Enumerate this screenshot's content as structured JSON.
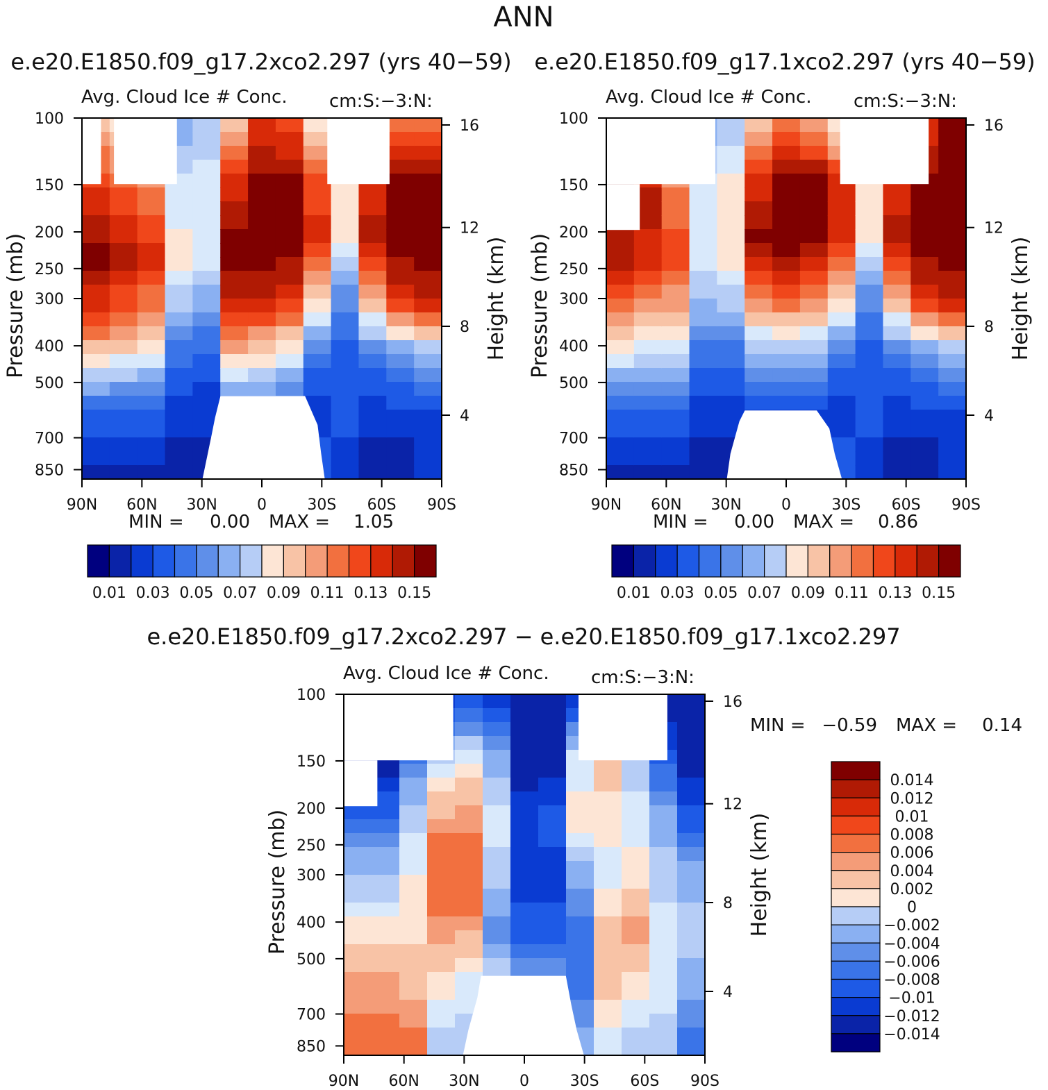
{
  "chart_data": {
    "title": "ANN",
    "panels": [
      {
        "type": "heatmap",
        "header": "e.e20.E1850.f09_g17.2xco2.297 (yrs 40−59)",
        "left_label": "Avg. Cloud Ice # Conc.",
        "right_label": "cm:S:−3:N:",
        "ylabel": "Pressure (mb)",
        "ylabel_right": "Height (km)",
        "x_ticks": [
          "90N",
          "60N",
          "30N",
          "0",
          "30S",
          "60S",
          "90S"
        ],
        "y_ticks": [
          "100",
          "150",
          "200",
          "250",
          "300",
          "400",
          "500",
          "700",
          "850"
        ],
        "y_right_ticks": [
          "16",
          "12",
          "8",
          "4"
        ],
        "min_label": "MIN =",
        "min_value": "0.00",
        "max_label": "MAX =",
        "max_value": "1.05",
        "colorbar_ticks": [
          "0.01",
          "0.03",
          "0.05",
          "0.07",
          "0.09",
          "0.11",
          "0.13",
          "0.15"
        ],
        "profiles": [
          [
            10,
            14,
            16,
            12,
            4,
            1
          ],
          [
            9,
            13,
            15,
            11,
            4,
            1
          ],
          [
            8,
            12,
            14,
            10,
            4,
            1
          ],
          [
            6,
            8,
            9,
            5,
            2,
            1
          ],
          [
            7,
            8,
            8,
            4,
            2,
            1
          ],
          [
            10,
            14,
            16,
            15,
            10,
            3,
            1
          ],
          [
            14,
            16,
            16,
            15,
            9,
            3,
            1
          ],
          [
            13,
            16,
            16,
            14,
            8,
            3,
            1
          ],
          [
            9,
            13,
            14,
            10,
            4,
            2,
            3
          ],
          [
            6,
            9,
            9,
            5,
            3,
            3,
            2
          ],
          [
            9,
            14,
            15,
            11,
            4,
            2,
            1
          ],
          [
            12,
            16,
            16,
            14,
            5,
            2,
            1
          ],
          [
            12,
            16,
            16,
            15,
            6,
            2,
            2
          ]
        ]
      },
      {
        "type": "heatmap",
        "header": "e.e20.E1850.f09_g17.1xco2.297 (yrs 40−59)",
        "left_label": "Avg. Cloud Ice # Conc.",
        "right_label": "cm:S:−3:N:",
        "ylabel": "Pressure (mb)",
        "ylabel_right": "Height (km)",
        "x_ticks": [
          "90N",
          "60N",
          "30N",
          "0",
          "30S",
          "60S",
          "90S"
        ],
        "y_ticks": [
          "100",
          "150",
          "200",
          "250",
          "300",
          "400",
          "500",
          "700",
          "850"
        ],
        "y_right_ticks": [
          "16",
          "12",
          "8",
          "4"
        ],
        "min_label": "MIN =",
        "min_value": "0.00",
        "max_label": "MAX =",
        "max_value": "0.86",
        "colorbar_ticks": [
          "0.01",
          "0.03",
          "0.05",
          "0.07",
          "0.09",
          "0.11",
          "0.13",
          "0.15"
        ],
        "profiles": [
          [
            16,
            16,
            15,
            10,
            4,
            1
          ],
          [
            12,
            15,
            14,
            9,
            4,
            1
          ],
          [
            8,
            12,
            13,
            9,
            4,
            1
          ],
          [
            6,
            8,
            8,
            5,
            2,
            1
          ],
          [
            7,
            9,
            9,
            5,
            2,
            1
          ],
          [
            10,
            14,
            16,
            12,
            6,
            2,
            1
          ],
          [
            12,
            16,
            16,
            13,
            6,
            2,
            1
          ],
          [
            11,
            16,
            16,
            12,
            6,
            2,
            1
          ],
          [
            9,
            14,
            14,
            10,
            4,
            2,
            3
          ],
          [
            6,
            9,
            9,
            5,
            3,
            3,
            2
          ],
          [
            9,
            14,
            15,
            11,
            4,
            2,
            1
          ],
          [
            14,
            16,
            16,
            14,
            5,
            2,
            1
          ],
          [
            16,
            16,
            16,
            15,
            6,
            2,
            2
          ]
        ]
      },
      {
        "type": "heatmap",
        "header": "e.e20.E1850.f09_g17.2xco2.297 − e.e20.E1850.f09_g17.1xco2.297",
        "left_label": "Avg. Cloud Ice # Conc.",
        "right_label": "cm:S:−3:N:",
        "ylabel": "Pressure (mb)",
        "ylabel_right": "Height (km)",
        "x_ticks": [
          "90N",
          "60N",
          "30N",
          "0",
          "30S",
          "60S",
          "90S"
        ],
        "y_ticks": [
          "100",
          "150",
          "200",
          "250",
          "300",
          "400",
          "500",
          "700",
          "850"
        ],
        "y_right_ticks": [
          "16",
          "12",
          "8",
          "4"
        ],
        "min_label": "MIN =",
        "min_value": "−0.59",
        "max_label": "MAX =",
        "max_value": "0.14",
        "colorbar_ticks": [
          "0.014",
          "0.012",
          "0.01",
          "0.008",
          "0.006",
          "0.004",
          "0.002",
          "0",
          "−0.002",
          "−0.004",
          "−0.006",
          "−0.008",
          "−0.01",
          "−0.012",
          "−0.014"
        ],
        "profiles": [
          [
            1,
            1,
            5,
            8,
            11,
            12
          ],
          [
            1,
            1,
            5,
            8,
            11,
            12
          ],
          [
            1,
            5,
            8,
            9,
            10,
            12
          ],
          [
            2,
            8,
            12,
            12,
            9,
            7
          ],
          [
            3,
            9,
            12,
            12,
            8,
            7
          ],
          [
            2,
            6,
            8,
            7,
            5,
            8,
            8
          ],
          [
            1,
            1,
            2,
            2,
            3,
            6,
            7
          ],
          [
            1,
            1,
            3,
            2,
            3,
            6,
            7
          ],
          [
            2,
            8,
            9,
            6,
            4,
            4,
            6
          ],
          [
            3,
            10,
            9,
            8,
            10,
            10,
            8
          ],
          [
            2,
            7,
            8,
            9,
            11,
            9,
            7
          ],
          [
            1,
            3,
            6,
            7,
            8,
            8,
            7
          ],
          [
            1,
            1,
            3,
            6,
            7,
            6,
            4
          ]
        ]
      }
    ],
    "palette_seq": [
      "#00007f",
      "#0a23a8",
      "#0a3bd2",
      "#1e5ae6",
      "#3a74e8",
      "#5f8fe9",
      "#8ab0f2",
      "#b6cdf6",
      "#d9e9fb",
      "#fde5d5",
      "#f8c3a6",
      "#f49c78",
      "#f2703f",
      "#f0471b",
      "#d82a08",
      "#b01a04",
      "#7f0000"
    ],
    "palette_diff": [
      "#00007f",
      "#0a23a8",
      "#0a3bd2",
      "#1e5ae6",
      "#3a74e8",
      "#5f8fe9",
      "#8ab0f2",
      "#b6cdf6",
      "#d9e9fb",
      "#fde5d5",
      "#f8c3a6",
      "#f49c78",
      "#f2703f",
      "#f0471b",
      "#d82a08",
      "#b01a04",
      "#7f0000"
    ]
  }
}
